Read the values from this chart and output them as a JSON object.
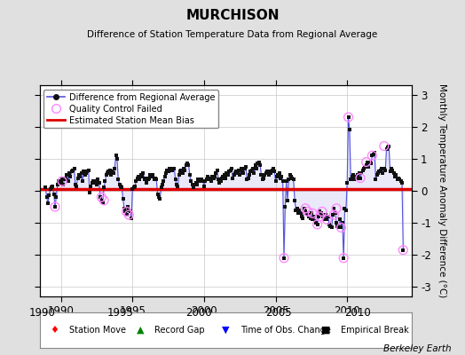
{
  "title": "MURCHISON",
  "subtitle": "Difference of Station Temperature Data from Regional Average",
  "ylabel": "Monthly Temperature Anomaly Difference (°C)",
  "credit": "Berkeley Earth",
  "xlim": [
    1988.5,
    2014.5
  ],
  "ylim": [
    -3.3,
    3.3
  ],
  "yticks": [
    -3,
    -2,
    -1,
    0,
    1,
    2,
    3
  ],
  "xticks": [
    1990,
    1995,
    2000,
    2005,
    2010
  ],
  "bias_value": 0.05,
  "background_color": "#e0e0e0",
  "plot_bg_color": "#ffffff",
  "grid_color": "#c8c8c8",
  "line_color": "#5555dd",
  "line_fill_color": "#aaaaee",
  "dot_color": "#111111",
  "qc_color": "#ff88ff",
  "bias_color": "#dd0000",
  "time_series": [
    1988.917,
    1989.0,
    1989.083,
    1989.167,
    1989.25,
    1989.333,
    1989.417,
    1989.5,
    1989.583,
    1989.667,
    1989.75,
    1989.833,
    1989.917,
    1990.0,
    1990.083,
    1990.167,
    1990.25,
    1990.333,
    1990.417,
    1990.5,
    1990.583,
    1990.667,
    1990.75,
    1990.833,
    1990.917,
    1991.0,
    1991.083,
    1991.167,
    1991.25,
    1991.333,
    1991.417,
    1991.5,
    1991.583,
    1991.667,
    1991.75,
    1991.833,
    1991.917,
    1992.0,
    1992.083,
    1992.167,
    1992.25,
    1992.333,
    1992.417,
    1992.5,
    1992.583,
    1992.667,
    1992.75,
    1992.833,
    1992.917,
    1993.0,
    1993.083,
    1993.167,
    1993.25,
    1993.333,
    1993.417,
    1993.5,
    1993.583,
    1993.667,
    1993.75,
    1993.833,
    1993.917,
    1994.0,
    1994.083,
    1994.167,
    1994.25,
    1994.333,
    1994.417,
    1994.5,
    1994.583,
    1994.667,
    1994.75,
    1994.833,
    1994.917,
    1995.0,
    1995.083,
    1995.167,
    1995.25,
    1995.333,
    1995.417,
    1995.5,
    1995.583,
    1995.667,
    1995.75,
    1995.833,
    1995.917,
    1996.0,
    1996.083,
    1996.167,
    1996.25,
    1996.333,
    1996.417,
    1996.5,
    1996.583,
    1996.667,
    1996.75,
    1996.833,
    1996.917,
    1997.0,
    1997.083,
    1997.167,
    1997.25,
    1997.333,
    1997.417,
    1997.5,
    1997.583,
    1997.667,
    1997.75,
    1997.833,
    1997.917,
    1998.0,
    1998.083,
    1998.167,
    1998.25,
    1998.333,
    1998.417,
    1998.5,
    1998.583,
    1998.667,
    1998.75,
    1998.833,
    1998.917,
    1999.0,
    1999.083,
    1999.167,
    1999.25,
    1999.333,
    1999.417,
    1999.5,
    1999.583,
    1999.667,
    1999.75,
    1999.833,
    1999.917,
    2000.0,
    2000.083,
    2000.167,
    2000.25,
    2000.333,
    2000.417,
    2000.5,
    2000.583,
    2000.667,
    2000.75,
    2000.833,
    2000.917,
    2001.0,
    2001.083,
    2001.167,
    2001.25,
    2001.333,
    2001.417,
    2001.5,
    2001.583,
    2001.667,
    2001.75,
    2001.833,
    2001.917,
    2002.0,
    2002.083,
    2002.167,
    2002.25,
    2002.333,
    2002.417,
    2002.5,
    2002.583,
    2002.667,
    2002.75,
    2002.833,
    2002.917,
    2003.0,
    2003.083,
    2003.167,
    2003.25,
    2003.333,
    2003.417,
    2003.5,
    2003.583,
    2003.667,
    2003.75,
    2003.833,
    2003.917,
    2004.0,
    2004.083,
    2004.167,
    2004.25,
    2004.333,
    2004.417,
    2004.5,
    2004.583,
    2004.667,
    2004.75,
    2004.833,
    2004.917,
    2005.0,
    2005.083,
    2005.167,
    2005.25,
    2005.333,
    2005.417,
    2005.5,
    2005.583,
    2005.667,
    2005.75,
    2005.833,
    2005.917,
    2006.0,
    2006.083,
    2006.167,
    2006.25,
    2006.333,
    2006.417,
    2006.5,
    2006.583,
    2006.667,
    2006.75,
    2006.833,
    2006.917,
    2007.0,
    2007.083,
    2007.167,
    2007.25,
    2007.333,
    2007.417,
    2007.5,
    2007.583,
    2007.667,
    2007.75,
    2007.833,
    2007.917,
    2008.0,
    2008.083,
    2008.167,
    2008.25,
    2008.333,
    2008.417,
    2008.5,
    2008.583,
    2008.667,
    2008.75,
    2008.833,
    2008.917,
    2009.0,
    2009.083,
    2009.167,
    2009.25,
    2009.333,
    2009.417,
    2009.5,
    2009.583,
    2009.667,
    2009.75,
    2009.833,
    2009.917,
    2010.0,
    2010.083,
    2010.167,
    2010.25,
    2010.333,
    2010.417,
    2010.5,
    2010.583,
    2010.667,
    2010.75,
    2010.833,
    2010.917,
    2011.0,
    2011.083,
    2011.167,
    2011.25,
    2011.333,
    2011.417,
    2011.5,
    2011.583,
    2011.667,
    2011.75,
    2011.833,
    2011.917,
    2012.0,
    2012.083,
    2012.167,
    2012.25,
    2012.333,
    2012.417,
    2012.5,
    2012.583,
    2012.667,
    2012.75,
    2012.833,
    2012.917,
    2013.0,
    2013.083,
    2013.167,
    2013.25,
    2013.333,
    2013.417,
    2013.5,
    2013.583,
    2013.667,
    2013.75,
    2013.833,
    2013.917
  ],
  "values": [
    0.1,
    -0.2,
    -0.4,
    -0.15,
    0.05,
    0.1,
    0.15,
    -0.1,
    -0.5,
    -0.2,
    0.2,
    0.3,
    0.25,
    0.3,
    0.35,
    0.2,
    0.4,
    0.35,
    0.5,
    0.3,
    0.55,
    0.45,
    0.6,
    0.65,
    0.7,
    0.2,
    0.15,
    0.4,
    0.5,
    0.45,
    0.55,
    0.3,
    0.6,
    0.5,
    0.55,
    0.6,
    0.65,
    -0.05,
    0.15,
    0.25,
    0.3,
    0.25,
    0.3,
    0.2,
    0.35,
    0.25,
    -0.2,
    -0.3,
    -0.35,
    0.1,
    0.3,
    0.5,
    0.55,
    0.6,
    0.65,
    0.5,
    0.6,
    0.55,
    0.7,
    1.1,
    1.0,
    0.35,
    0.2,
    0.15,
    0.1,
    -0.25,
    -0.55,
    -0.65,
    -0.75,
    -0.5,
    -0.6,
    -0.65,
    -0.85,
    0.05,
    0.1,
    0.15,
    0.3,
    0.4,
    0.45,
    0.35,
    0.5,
    0.45,
    0.55,
    0.35,
    0.4,
    0.25,
    0.35,
    0.4,
    0.5,
    0.45,
    0.5,
    0.35,
    0.4,
    0.35,
    -0.1,
    -0.2,
    -0.25,
    0.1,
    0.2,
    0.3,
    0.45,
    0.55,
    0.65,
    0.6,
    0.7,
    0.65,
    0.65,
    0.7,
    0.7,
    0.35,
    0.2,
    0.15,
    0.5,
    0.6,
    0.65,
    0.55,
    0.7,
    0.65,
    0.8,
    0.85,
    0.8,
    0.5,
    0.3,
    0.2,
    0.1,
    0.2,
    0.25,
    0.2,
    0.35,
    0.3,
    0.35,
    0.35,
    0.3,
    0.15,
    0.3,
    0.35,
    0.45,
    0.4,
    0.35,
    0.3,
    0.45,
    0.4,
    0.45,
    0.55,
    0.65,
    0.35,
    0.25,
    0.3,
    0.4,
    0.45,
    0.5,
    0.4,
    0.55,
    0.5,
    0.6,
    0.65,
    0.7,
    0.4,
    0.5,
    0.55,
    0.6,
    0.55,
    0.65,
    0.5,
    0.7,
    0.6,
    0.55,
    0.7,
    0.75,
    0.35,
    0.4,
    0.5,
    0.6,
    0.65,
    0.7,
    0.55,
    0.8,
    0.7,
    0.85,
    0.9,
    0.8,
    0.5,
    0.35,
    0.4,
    0.5,
    0.55,
    0.6,
    0.5,
    0.6,
    0.55,
    0.65,
    0.7,
    0.6,
    0.3,
    0.45,
    0.5,
    0.55,
    0.4,
    0.45,
    0.3,
    -2.1,
    -0.5,
    0.3,
    -0.3,
    0.35,
    0.5,
    0.45,
    0.4,
    0.35,
    -0.3,
    -0.6,
    -0.55,
    -0.7,
    -0.6,
    -0.7,
    -0.8,
    -0.85,
    -0.55,
    -0.65,
    -0.7,
    -0.75,
    -0.8,
    -0.85,
    -0.7,
    -0.9,
    -0.8,
    -0.95,
    -1.0,
    -1.05,
    -0.8,
    -0.65,
    -0.7,
    -0.75,
    -0.8,
    -0.9,
    -0.75,
    -0.9,
    -0.8,
    -1.05,
    -1.1,
    -1.15,
    -0.75,
    -0.55,
    -0.7,
    -1.0,
    -1.1,
    -1.15,
    -0.9,
    -1.15,
    -1.0,
    -2.1,
    -0.55,
    -0.6,
    0.25,
    2.3,
    1.9,
    0.35,
    0.45,
    0.5,
    0.35,
    0.45,
    0.4,
    0.5,
    0.55,
    0.4,
    0.55,
    0.65,
    0.7,
    0.75,
    0.8,
    0.9,
    0.75,
    0.9,
    0.85,
    1.1,
    1.15,
    1.2,
    0.35,
    0.5,
    0.55,
    0.6,
    0.65,
    0.7,
    0.55,
    0.7,
    0.65,
    1.3,
    1.35,
    1.4,
    0.6,
    0.7,
    0.65,
    0.55,
    0.45,
    0.5,
    0.35,
    0.4,
    0.35,
    0.3,
    0.25,
    -1.85
  ],
  "qc_failed_times": [
    1989.583,
    1990.083,
    1992.833,
    1993.0,
    1994.583,
    1994.75,
    2005.583,
    2007.083,
    2007.25,
    2007.583,
    2007.917,
    2008.083,
    2008.25,
    2008.583,
    2009.083,
    2009.25,
    2009.583,
    2009.75,
    2010.083,
    2010.917,
    2011.333,
    2011.75,
    2012.583,
    2013.917
  ],
  "qc_failed_values": [
    -0.5,
    0.3,
    -0.2,
    -0.3,
    -0.65,
    -0.75,
    -2.1,
    -0.55,
    -0.65,
    -0.7,
    -1.05,
    -0.8,
    -0.65,
    -0.9,
    -0.75,
    -0.55,
    -1.15,
    -2.1,
    2.3,
    0.4,
    0.9,
    1.1,
    1.4,
    -1.85
  ]
}
